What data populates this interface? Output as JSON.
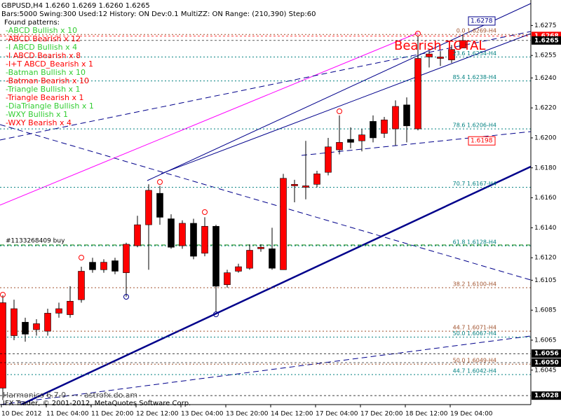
{
  "chart_data": {
    "type": "candlestick",
    "title": "GBPUSD,H4  1.6260 1.6269 1.6260 1.6265",
    "info": "Bars:5000  Swing:300  Used:12  History: ON Dev:0.1  MultiZZ: ON  Range: (210,390)  Step:60",
    "patterns_title": "Found patterns:",
    "patterns": [
      {
        "text": "-ABCD Bullish x 10",
        "color": "#32cd32"
      },
      {
        "text": "-ABCD Bearish x 12",
        "color": "#ff0000"
      },
      {
        "text": "-I ABCD Bullish x 4",
        "color": "#32cd32"
      },
      {
        "text": "-I ABCD Bearish x 8",
        "color": "#ff0000"
      },
      {
        "text": "-I+T ABCD_Bearish x 1",
        "color": "#ff0000"
      },
      {
        "text": "-Batman Bullish x 10",
        "color": "#32cd32"
      },
      {
        "text": "-Batman Bearish x 10",
        "color": "#ff0000"
      },
      {
        "text": "-Triangle Bullish x 1",
        "color": "#32cd32"
      },
      {
        "text": "-Triangle Bearish x 1",
        "color": "#ff0000"
      },
      {
        "text": "-DiaTriangle Bullish x 1",
        "color": "#32cd32"
      },
      {
        "text": "-WXY Bullish x 1",
        "color": "#32cd32"
      },
      {
        "text": "-WXY Bearish x 4",
        "color": "#ff0000"
      }
    ],
    "signal": "Bearish TOTAL",
    "order_label": "#1133268409 buy",
    "watermark": "Harmonics 6.7.0",
    "site": "astrofx.do.am",
    "footer": "IFX Trader, © 2001-2012, MetaQuotes Software Corp.",
    "up_color": "#ff0000",
    "down_color": "#000000",
    "categories": [
      "10 Dec 2012",
      null,
      null,
      null,
      "11 Dec 04:00",
      null,
      null,
      null,
      "11 Dec 20:00",
      null,
      null,
      null,
      "12 Dec 12:00",
      null,
      null,
      null,
      "13 Dec 04:00",
      null,
      null,
      null,
      "13 Dec 20:00",
      null,
      null,
      null,
      "14 Dec 12:00",
      null,
      null,
      null,
      "17 Dec 04:00",
      null,
      null,
      null,
      "17 Dec 20:00",
      null,
      null,
      null,
      "18 Dec 12:00",
      null,
      null,
      null,
      "19 Dec 04:00",
      null
    ],
    "open": [
      1.6033,
      1.6068,
      1.6077,
      1.6072,
      1.6071,
      1.6083,
      1.6082,
      1.6092,
      1.6117,
      1.6112,
      1.6118,
      1.611,
      1.6128,
      1.6142,
      1.6163,
      1.6146,
      1.6128,
      1.6143,
      1.6123,
      1.6141,
      1.6102,
      1.6111,
      1.6113,
      1.6126,
      1.6126,
      1.6112,
      1.6168,
      1.6167,
      1.6169,
      1.6177,
      1.6192,
      1.6199,
      1.6198,
      1.6211,
      1.6203,
      1.6206,
      1.6222,
      1.6206,
      1.6254,
      1.6253,
      1.6252,
      1.626
    ],
    "high": [
      1.6095,
      1.6092,
      1.608,
      1.6079,
      1.6086,
      1.609,
      1.6101,
      1.6114,
      1.612,
      1.6119,
      1.612,
      1.613,
      1.6148,
      1.6169,
      1.6168,
      1.6149,
      1.6145,
      1.6146,
      1.6147,
      1.6142,
      1.6112,
      1.6116,
      1.6129,
      1.6129,
      1.614,
      1.6176,
      1.6172,
      1.6198,
      1.6178,
      1.62,
      1.6215,
      1.6207,
      1.6206,
      1.6215,
      1.6214,
      1.6225,
      1.6227,
      1.6268,
      1.6258,
      1.6258,
      1.6262,
      1.6269
    ],
    "low": [
      1.6025,
      1.6065,
      1.6064,
      1.6068,
      1.6068,
      1.608,
      1.608,
      1.609,
      1.611,
      1.611,
      1.6109,
      1.6094,
      1.6127,
      1.6112,
      1.6142,
      1.6126,
      1.6126,
      1.6119,
      1.6121,
      1.6084,
      1.61,
      1.611,
      1.6112,
      1.6124,
      1.6112,
      1.6112,
      1.6157,
      1.6159,
      1.6167,
      1.6175,
      1.6189,
      1.6193,
      1.6191,
      1.6197,
      1.62,
      1.6195,
      1.6197,
      1.6205,
      1.6247,
      1.6248,
      1.625,
      1.626
    ],
    "close": [
      1.609,
      1.6086,
      1.6069,
      1.6076,
      1.6083,
      1.6086,
      1.6091,
      1.6111,
      1.6112,
      1.6117,
      1.6111,
      1.6129,
      1.6142,
      1.6165,
      1.6147,
      1.6127,
      1.6143,
      1.6121,
      1.6141,
      1.6101,
      1.611,
      1.6114,
      1.6125,
      1.6127,
      1.6113,
      1.6173,
      1.6169,
      1.6168,
      1.6176,
      1.6194,
      1.6197,
      1.6197,
      1.6202,
      1.62,
      1.6212,
      1.6221,
      1.6208,
      1.6253,
      1.6256,
      1.6254,
      1.6259,
      1.6265
    ],
    "ylim": [
      1.6022,
      1.6292
    ],
    "yticks": [
      {
        "value": 1.6275,
        "label": "1.6275"
      },
      {
        "value": 1.6255,
        "label": "1.6255"
      },
      {
        "value": 1.624,
        "label": "1.6240"
      },
      {
        "value": 1.622,
        "label": "1.6220"
      },
      {
        "value": 1.62,
        "label": "1.6200"
      },
      {
        "value": 1.618,
        "label": "1.6180"
      },
      {
        "value": 1.616,
        "label": "1.6160"
      },
      {
        "value": 1.614,
        "label": "1.6140"
      },
      {
        "value": 1.612,
        "label": "1.6120"
      },
      {
        "value": 1.6105,
        "label": "1.6105"
      },
      {
        "value": 1.6085,
        "label": "1.6085"
      },
      {
        "value": 1.6065,
        "label": "1.6065"
      },
      {
        "value": 1.6045,
        "label": "1.6045"
      }
    ],
    "price_marks": [
      {
        "value": 1.6268,
        "label": "1.6268",
        "color": "#ff0000"
      },
      {
        "value": 1.6265,
        "label": "1.6265",
        "color": "#000000"
      },
      {
        "value": 1.6056,
        "label": "1.6056",
        "color": "#000000"
      },
      {
        "value": 1.605,
        "label": "1.6050",
        "color": "#000000"
      },
      {
        "value": 1.6028,
        "label": "1.6028",
        "color": "#000000"
      }
    ],
    "fib_levels": [
      {
        "value": 1.6269,
        "label": "0.0 1.6269-H4",
        "color": "#a0522d"
      },
      {
        "value": 1.6254,
        "label": "23.6 1.6254-H4",
        "color": "#008080"
      },
      {
        "value": 1.6238,
        "label": "85.4 1.6238-H4",
        "color": "#008080"
      },
      {
        "value": 1.6206,
        "label": "78.6 1.6206-H4",
        "color": "#008080"
      },
      {
        "value": 1.6167,
        "label": "70.7 1.6167-H4",
        "color": "#008080"
      },
      {
        "value": 1.6128,
        "label": "61.8 1.6128-H4",
        "color": "#008080"
      },
      {
        "value": 1.61,
        "label": "38.2 1.6100-H4",
        "color": "#a0522d"
      },
      {
        "value": 1.6071,
        "label": "44.7 1.6071-H4",
        "color": "#a0522d"
      },
      {
        "value": 1.6067,
        "label": "50.0 1.6067-H4",
        "color": "#008080"
      },
      {
        "value": 1.6049,
        "label": "50.0 1.6049-H4",
        "color": "#a0522d"
      },
      {
        "value": 1.6042,
        "label": "44.7 1.6042-H4",
        "color": "#008080"
      }
    ],
    "boxed_labels": [
      {
        "value": 1.6278,
        "label": "1.6278",
        "color": "#00008b"
      },
      {
        "value": 1.6198,
        "label": "1.6198",
        "color": "#ff0000"
      }
    ]
  }
}
